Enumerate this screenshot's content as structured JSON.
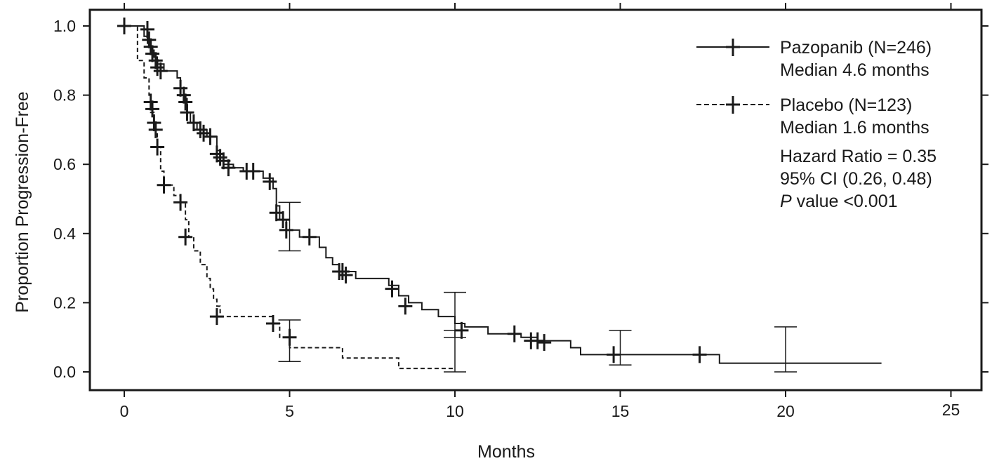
{
  "chart_data": {
    "type": "line",
    "xlabel": "Months",
    "ylabel": "Proportion Progression-Free",
    "xlim": [
      -1,
      25.5
    ],
    "ylim": [
      -0.05,
      1.05
    ],
    "x_ticks": [
      0,
      5,
      10,
      15,
      20,
      25
    ],
    "x_tick_labels": [
      "0",
      "5",
      "10",
      "15",
      "20",
      "25"
    ],
    "y_ticks": [
      0.0,
      0.2,
      0.4,
      0.6,
      0.8,
      1.0
    ],
    "y_tick_labels": [
      "0.0",
      "0.2",
      "0.4",
      "0.6",
      "0.8",
      "1.0"
    ],
    "grid": false,
    "legend_position": "top-right",
    "series": [
      {
        "name": "Pazopanib (N=246)",
        "subtitle": "Median 4.6 months",
        "style": "solid",
        "color": "#1a1a1a",
        "steps": [
          [
            0,
            1.0
          ],
          [
            0.6,
            0.97
          ],
          [
            0.7,
            0.95
          ],
          [
            0.8,
            0.93
          ],
          [
            0.9,
            0.91
          ],
          [
            1.0,
            0.89
          ],
          [
            1.2,
            0.87
          ],
          [
            1.6,
            0.85
          ],
          [
            1.7,
            0.82
          ],
          [
            1.8,
            0.79
          ],
          [
            1.9,
            0.75
          ],
          [
            2.0,
            0.72
          ],
          [
            2.2,
            0.7
          ],
          [
            2.5,
            0.68
          ],
          [
            2.8,
            0.64
          ],
          [
            2.9,
            0.62
          ],
          [
            3.0,
            0.6
          ],
          [
            3.3,
            0.59
          ],
          [
            3.6,
            0.58
          ],
          [
            4.2,
            0.56
          ],
          [
            4.5,
            0.53
          ],
          [
            4.6,
            0.48
          ],
          [
            4.7,
            0.44
          ],
          [
            4.9,
            0.41
          ],
          [
            5.3,
            0.39
          ],
          [
            5.9,
            0.36
          ],
          [
            6.1,
            0.33
          ],
          [
            6.3,
            0.31
          ],
          [
            6.5,
            0.29
          ],
          [
            7.0,
            0.27
          ],
          [
            8.0,
            0.25
          ],
          [
            8.3,
            0.22
          ],
          [
            8.6,
            0.2
          ],
          [
            9.0,
            0.18
          ],
          [
            9.5,
            0.16
          ],
          [
            10.0,
            0.14
          ],
          [
            10.3,
            0.13
          ],
          [
            11.0,
            0.11
          ],
          [
            12.0,
            0.1
          ],
          [
            12.5,
            0.09
          ],
          [
            13.5,
            0.07
          ],
          [
            13.8,
            0.05
          ],
          [
            18.0,
            0.025
          ],
          [
            22.9,
            0.025
          ]
        ],
        "end_x": 22.9,
        "censor_points": [
          [
            0,
            1.0
          ],
          [
            0.7,
            0.99
          ],
          [
            0.75,
            0.96
          ],
          [
            0.8,
            0.94
          ],
          [
            0.85,
            0.92
          ],
          [
            0.95,
            0.9
          ],
          [
            1.0,
            0.88
          ],
          [
            1.1,
            0.87
          ],
          [
            1.7,
            0.82
          ],
          [
            1.8,
            0.8
          ],
          [
            1.85,
            0.78
          ],
          [
            1.9,
            0.75
          ],
          [
            2.1,
            0.72
          ],
          [
            2.3,
            0.7
          ],
          [
            2.4,
            0.69
          ],
          [
            2.6,
            0.68
          ],
          [
            2.8,
            0.63
          ],
          [
            2.9,
            0.62
          ],
          [
            3.0,
            0.61
          ],
          [
            3.15,
            0.59
          ],
          [
            3.7,
            0.58
          ],
          [
            3.9,
            0.58
          ],
          [
            4.4,
            0.55
          ],
          [
            4.6,
            0.46
          ],
          [
            4.8,
            0.44
          ],
          [
            4.9,
            0.41
          ],
          [
            5.6,
            0.39
          ],
          [
            6.5,
            0.29
          ],
          [
            6.6,
            0.29
          ],
          [
            6.7,
            0.28
          ],
          [
            8.1,
            0.24
          ],
          [
            8.5,
            0.19
          ],
          [
            10.2,
            0.12
          ],
          [
            11.8,
            0.11
          ],
          [
            12.3,
            0.09
          ],
          [
            12.5,
            0.09
          ],
          [
            12.7,
            0.085
          ],
          [
            14.8,
            0.05
          ],
          [
            17.4,
            0.05
          ]
        ],
        "error_bars": [
          {
            "x": 5.0,
            "y": 0.42,
            "lo": 0.35,
            "hi": 0.49
          },
          {
            "x": 10.0,
            "y": 0.14,
            "lo": 0.1,
            "hi": 0.23
          },
          {
            "x": 15.0,
            "y": 0.05,
            "lo": 0.02,
            "hi": 0.12
          },
          {
            "x": 20.0,
            "y": 0.025,
            "lo": 0.0,
            "hi": 0.13
          }
        ]
      },
      {
        "name": "Placebo (N=123)",
        "subtitle": "Median 1.6 months",
        "style": "dashed",
        "color": "#1a1a1a",
        "steps": [
          [
            0,
            1.0
          ],
          [
            0.4,
            0.9
          ],
          [
            0.6,
            0.85
          ],
          [
            0.75,
            0.8
          ],
          [
            0.8,
            0.75
          ],
          [
            0.9,
            0.7
          ],
          [
            1.0,
            0.65
          ],
          [
            1.1,
            0.58
          ],
          [
            1.2,
            0.54
          ],
          [
            1.5,
            0.51
          ],
          [
            1.7,
            0.49
          ],
          [
            1.85,
            0.44
          ],
          [
            1.95,
            0.39
          ],
          [
            2.1,
            0.35
          ],
          [
            2.3,
            0.31
          ],
          [
            2.5,
            0.27
          ],
          [
            2.6,
            0.24
          ],
          [
            2.7,
            0.21
          ],
          [
            2.8,
            0.19
          ],
          [
            2.9,
            0.16
          ],
          [
            4.5,
            0.14
          ],
          [
            4.7,
            0.1
          ],
          [
            5.0,
            0.07
          ],
          [
            6.6,
            0.04
          ],
          [
            8.3,
            0.01
          ],
          [
            10.0,
            0.01
          ]
        ],
        "end_x": 10.0,
        "censor_points": [
          [
            0.8,
            0.78
          ],
          [
            0.85,
            0.76
          ],
          [
            0.9,
            0.72
          ],
          [
            0.95,
            0.7
          ],
          [
            1.0,
            0.65
          ],
          [
            1.2,
            0.54
          ],
          [
            1.7,
            0.49
          ],
          [
            1.85,
            0.39
          ],
          [
            2.8,
            0.16
          ],
          [
            4.5,
            0.14
          ],
          [
            5.0,
            0.1
          ]
        ],
        "error_bars": [
          {
            "x": 5.0,
            "y": 0.07,
            "lo": 0.03,
            "hi": 0.15
          },
          {
            "x": 10.0,
            "y": 0.01,
            "lo": 0.0,
            "hi": 0.12
          }
        ]
      }
    ],
    "annotations": [
      "Hazard Ratio = 0.35",
      "95% CI (0.26, 0.48)",
      "value <0.001"
    ],
    "annotation_p": "P"
  }
}
